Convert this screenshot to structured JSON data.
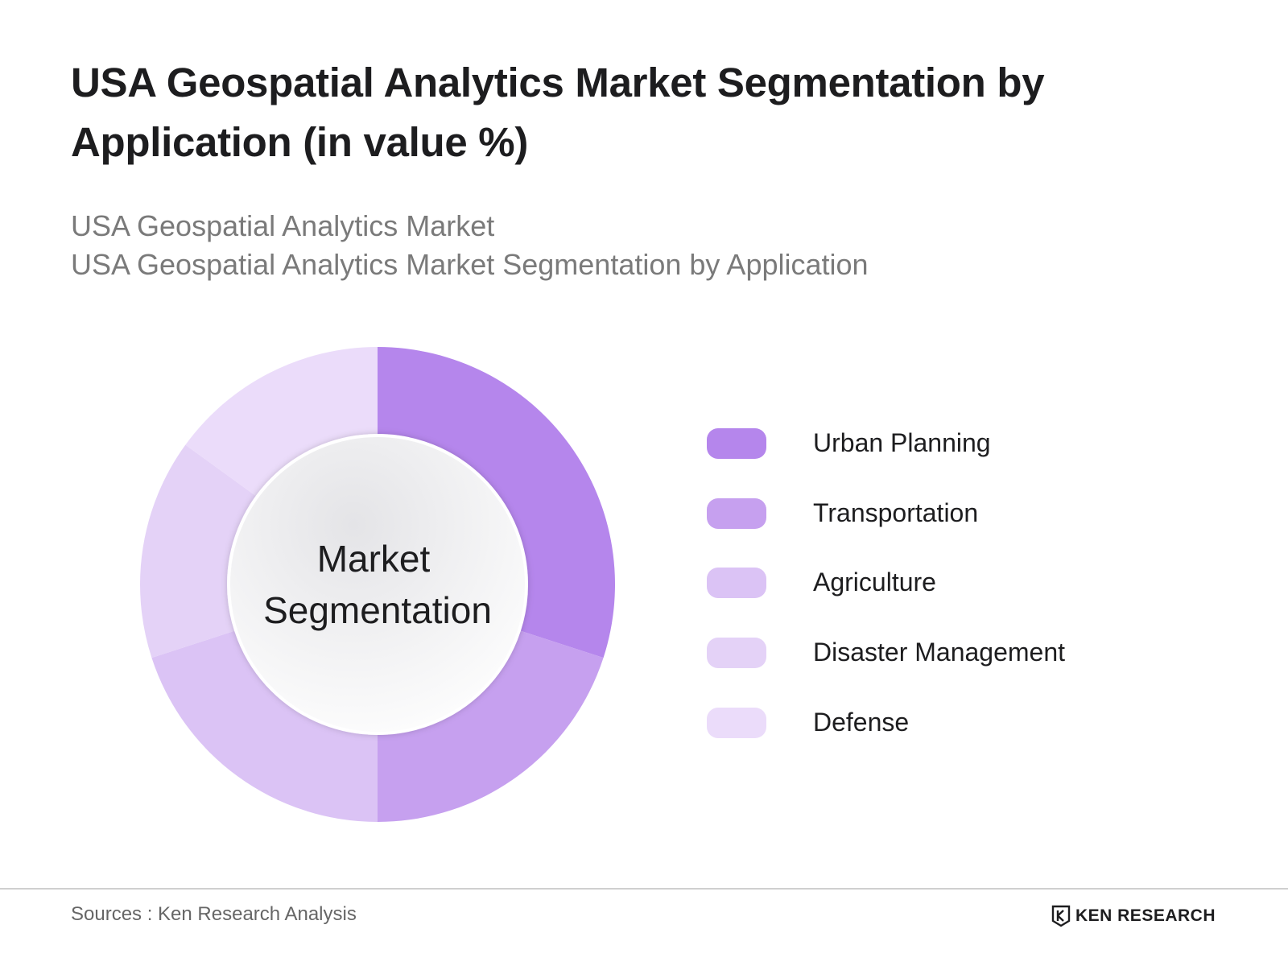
{
  "header": {
    "title": "USA Geospatial Analytics Market Segmentation by Application (in value %)",
    "subtitle_line1": "USA Geospatial Analytics Market",
    "subtitle_line2": "USA Geospatial Analytics Market Segmentation by Application"
  },
  "chart_data": {
    "type": "pie",
    "center_label_line1": "Market",
    "center_label_line2": "Segmentation",
    "legend_placement": "right",
    "categories": [
      "Urban Planning",
      "Transportation",
      "Agriculture",
      "Disaster Management",
      "Defense"
    ],
    "values": [
      30,
      20,
      20,
      15,
      15
    ],
    "colors": [
      "#b586ec",
      "#c6a0ef",
      "#dbc3f5",
      "#e4d2f7",
      "#ebdcfa"
    ]
  },
  "footer": {
    "source": "Sources : Ken Research Analysis",
    "brand": "KEN RESEARCH"
  }
}
